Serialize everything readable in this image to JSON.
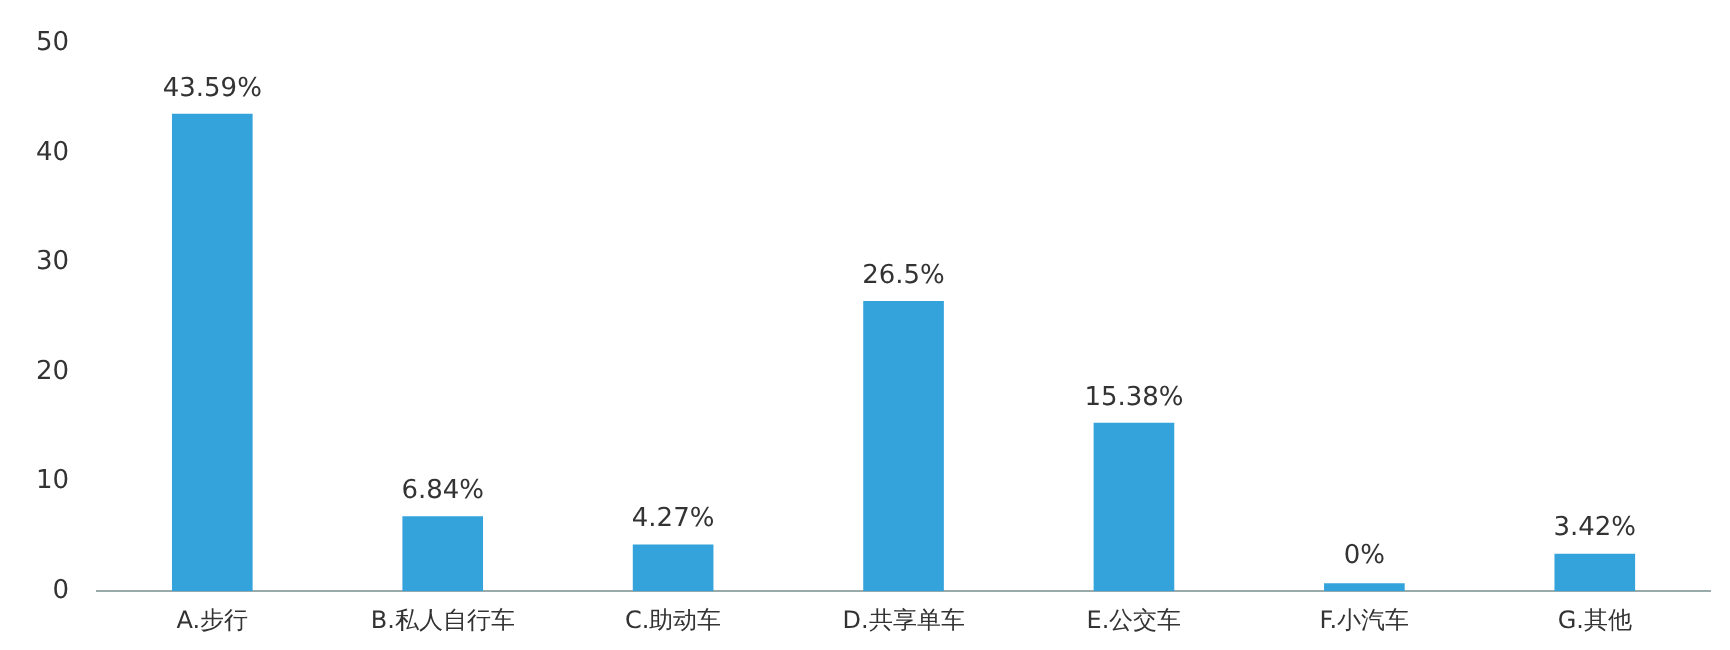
{
  "chart_data": {
    "type": "bar",
    "categories": [
      "A.步行",
      "B.私人自行车",
      "C.助动车",
      "D.共享单车",
      "E.公交车",
      "F.小汽车",
      "G.其他"
    ],
    "values": [
      43.59,
      6.84,
      4.27,
      26.5,
      15.38,
      0,
      3.42
    ],
    "value_labels": [
      "43.59%",
      "6.84%",
      "4.27%",
      "26.5%",
      "15.38%",
      "0%",
      "3.42%"
    ],
    "color": "#34a3db",
    "ylim": [
      0,
      50
    ],
    "yticks": [
      0,
      10,
      20,
      30,
      40,
      50
    ],
    "grid": false,
    "legend": false
  }
}
